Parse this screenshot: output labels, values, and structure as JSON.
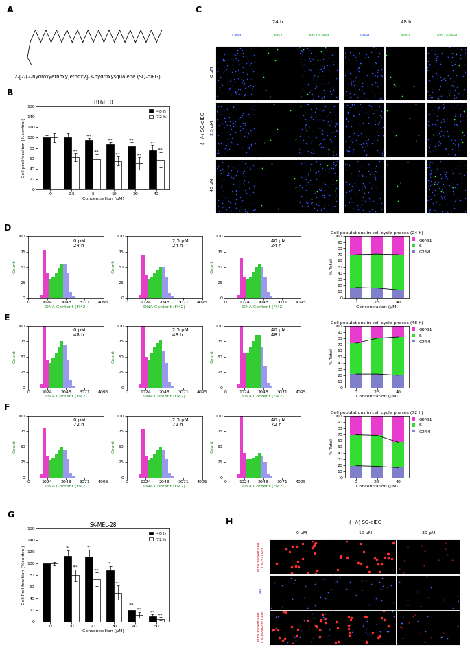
{
  "structure": {
    "panel": "A",
    "name": "2-[2-(2-hydroxyethoxy)ethoxy]-3-hydroxysqualene (SQ-dlEG)"
  },
  "micrographs": [
    {
      "panel": "C",
      "group_label": "(+/-) SQ-dlEG",
      "time_labels": [
        "24 h",
        "48 h"
      ],
      "channels": [
        "DAPI",
        "KI67",
        "KI67/DAPI"
      ],
      "rows": [
        "0 µM",
        "2.5 µM",
        "40 µM"
      ]
    },
    {
      "panel": "H",
      "group_label": "(+/-) SQ-dlEG",
      "columns": [
        "0 µM",
        "10 µM",
        "30 µM"
      ],
      "rows": [
        "MitoTracker Red\nCM-H2XRos",
        "DAPI",
        "MitoTracker Red\nCM-H2XRos/ DAPI"
      ]
    }
  ],
  "chart_data": [
    {
      "panel": "B",
      "type": "bar",
      "title": "B16F10",
      "xlabel": "Concentration (µM)",
      "ylabel": "Cell proliferation (%control)",
      "categories": [
        "0",
        "2.5",
        "5",
        "10",
        "20",
        "40"
      ],
      "ylim": [
        0,
        160
      ],
      "yticks": [
        0,
        20,
        40,
        60,
        80,
        100,
        120,
        140,
        160
      ],
      "legend": "upper right",
      "series": [
        {
          "name": "48 h",
          "color": "#000000",
          "values": [
            100,
            100,
            95,
            88,
            83,
            75
          ],
          "errors": [
            5,
            8,
            4,
            3,
            8,
            10
          ],
          "annotations": [
            null,
            null,
            "***",
            "***",
            "***",
            "***"
          ]
        },
        {
          "name": "72 h",
          "color": "#ffffff",
          "values": [
            100,
            62,
            58,
            55,
            50,
            57
          ],
          "errors": [
            8,
            8,
            10,
            8,
            12,
            15
          ],
          "annotations": [
            null,
            "***",
            "***",
            "***",
            "***",
            "***"
          ]
        }
      ]
    },
    {
      "panel": "D",
      "type": "histogram",
      "annotation": "0 µM\n24 h",
      "xlabel": "DNA Content (FM2)",
      "ylabel": "Count",
      "bins": [
        640,
        800,
        960,
        1120,
        1280,
        1440,
        1600,
        1760,
        1920,
        2080,
        2240,
        2400,
        2560
      ],
      "values": [
        5,
        78,
        40,
        30,
        35,
        40,
        48,
        55,
        55,
        40,
        10,
        2
      ],
      "colors": [
        "#e640c8",
        "#e640c8",
        "#e640c8",
        "#33cc33",
        "#33cc33",
        "#33cc33",
        "#33cc33",
        "#33cc33",
        "#9999ee",
        "#9999ee",
        "#9999ee",
        "#9999ee"
      ],
      "xlim": [
        0,
        4095
      ],
      "xticks": [
        0,
        1024,
        2048,
        3071,
        4095
      ],
      "ylim": [
        0,
        100
      ],
      "yticks": [
        0,
        25,
        50,
        75,
        100
      ]
    },
    {
      "type": "histogram",
      "annotation": "2.5 µM\n24 h",
      "xlabel": "DNA Content (FM2)",
      "ylabel": "Count",
      "bins": [
        640,
        800,
        960,
        1120,
        1280,
        1440,
        1600,
        1760,
        1920,
        2080,
        2240,
        2400,
        2560
      ],
      "values": [
        5,
        70,
        38,
        30,
        35,
        40,
        45,
        50,
        50,
        35,
        8,
        2
      ],
      "colors": [
        "#e640c8",
        "#e640c8",
        "#e640c8",
        "#33cc33",
        "#33cc33",
        "#33cc33",
        "#33cc33",
        "#33cc33",
        "#9999ee",
        "#9999ee",
        "#9999ee",
        "#9999ee"
      ],
      "xlim": [
        0,
        4095
      ],
      "xticks": [
        0,
        1024,
        2048,
        3071,
        4095
      ],
      "ylim": [
        0,
        100
      ],
      "yticks": [
        0,
        25,
        50,
        75,
        100
      ]
    },
    {
      "type": "histogram",
      "annotation": "40 µM\n24 h",
      "xlabel": "DNA Content (FM2)",
      "ylabel": "Count",
      "bins": [
        640,
        800,
        960,
        1120,
        1280,
        1440,
        1600,
        1760,
        1920,
        2080,
        2240,
        2400,
        2560
      ],
      "values": [
        5,
        65,
        35,
        30,
        35,
        42,
        50,
        55,
        50,
        35,
        10,
        2
      ],
      "colors": [
        "#e640c8",
        "#e640c8",
        "#e640c8",
        "#33cc33",
        "#33cc33",
        "#33cc33",
        "#33cc33",
        "#33cc33",
        "#9999ee",
        "#9999ee",
        "#9999ee",
        "#9999ee"
      ],
      "xlim": [
        0,
        4095
      ],
      "xticks": [
        0,
        1024,
        2048,
        3071,
        4095
      ],
      "ylim": [
        0,
        100
      ],
      "yticks": [
        0,
        25,
        50,
        75,
        100
      ]
    },
    {
      "type": "bar",
      "stacked": true,
      "title": "Cell populations in cell cycle phases (24 h)",
      "xlabel": "Concentration (µM)",
      "ylabel": "% Total",
      "categories": [
        "0",
        "2.5",
        "40"
      ],
      "ylim": [
        0,
        100
      ],
      "yticks": [
        0,
        10,
        20,
        30,
        40,
        50,
        60,
        70,
        80,
        90,
        100
      ],
      "legend": "upper left",
      "series": [
        {
          "name": "G2/M",
          "color": "#7f7fcc",
          "values": [
            17,
            16,
            13
          ]
        },
        {
          "name": "S",
          "color": "#33dd33",
          "values": [
            53,
            55,
            57
          ]
        },
        {
          "name": "G0/G1",
          "color": "#e83ccf",
          "values": [
            30,
            29,
            30
          ]
        }
      ]
    },
    {
      "panel": "E",
      "type": "histogram",
      "annotation": "0 µM\n48 h",
      "xlabel": "DNA Content (FM2)",
      "ylabel": "Count",
      "bins": [
        640,
        800,
        960,
        1120,
        1280,
        1440,
        1600,
        1760,
        1920,
        2080,
        2240,
        2400,
        2560
      ],
      "values": [
        5,
        100,
        45,
        40,
        48,
        55,
        65,
        75,
        70,
        45,
        12,
        2
      ],
      "colors": [
        "#e640c8",
        "#e640c8",
        "#e640c8",
        "#33cc33",
        "#33cc33",
        "#33cc33",
        "#33cc33",
        "#33cc33",
        "#9999ee",
        "#9999ee",
        "#9999ee",
        "#9999ee"
      ],
      "xlim": [
        0,
        4095
      ],
      "xticks": [
        0,
        1024,
        2048,
        3071,
        4095
      ],
      "ylim": [
        0,
        100
      ],
      "yticks": [
        0,
        25,
        50,
        75,
        100
      ]
    },
    {
      "type": "histogram",
      "annotation": "2.5 µM\n48 h",
      "xlabel": "DNA Content (FM2)",
      "ylabel": "Count",
      "bins": [
        640,
        800,
        960,
        1120,
        1280,
        1440,
        1600,
        1760,
        1920,
        2080,
        2240,
        2400,
        2560
      ],
      "values": [
        5,
        100,
        50,
        45,
        55,
        65,
        72,
        78,
        60,
        40,
        10,
        2
      ],
      "colors": [
        "#e640c8",
        "#e640c8",
        "#e640c8",
        "#33cc33",
        "#33cc33",
        "#33cc33",
        "#33cc33",
        "#33cc33",
        "#9999ee",
        "#9999ee",
        "#9999ee",
        "#9999ee"
      ],
      "xlim": [
        0,
        4095
      ],
      "xticks": [
        0,
        1024,
        2048,
        3071,
        4095
      ],
      "ylim": [
        0,
        100
      ],
      "yticks": [
        0,
        25,
        50,
        75,
        100
      ]
    },
    {
      "type": "histogram",
      "annotation": "40 µM\n48 h",
      "xlabel": "DNA Content (FM2)",
      "ylabel": "Count",
      "bins": [
        640,
        800,
        960,
        1120,
        1280,
        1440,
        1600,
        1760,
        1920,
        2080,
        2240,
        2400,
        2560
      ],
      "values": [
        5,
        100,
        55,
        55,
        65,
        75,
        85,
        85,
        65,
        35,
        8,
        2
      ],
      "colors": [
        "#e640c8",
        "#e640c8",
        "#e640c8",
        "#33cc33",
        "#33cc33",
        "#33cc33",
        "#33cc33",
        "#33cc33",
        "#9999ee",
        "#9999ee",
        "#9999ee",
        "#9999ee"
      ],
      "xlim": [
        0,
        4095
      ],
      "xticks": [
        0,
        1024,
        2048,
        3071,
        4095
      ],
      "ylim": [
        0,
        100
      ],
      "yticks": [
        0,
        25,
        50,
        75,
        100
      ]
    },
    {
      "type": "bar",
      "stacked": true,
      "title": "Cell populations in cell cycle phases (48 h)",
      "xlabel": "Concentration (µM)",
      "ylabel": "% Total",
      "categories": [
        "0",
        "2.5",
        "40"
      ],
      "ylim": [
        0,
        100
      ],
      "yticks": [
        0,
        10,
        20,
        30,
        40,
        50,
        60,
        70,
        80,
        90,
        100
      ],
      "legend": "upper left",
      "series": [
        {
          "name": "G2/M",
          "color": "#7f7fcc",
          "values": [
            22,
            22,
            20
          ]
        },
        {
          "name": "S",
          "color": "#33dd33",
          "values": [
            50,
            58,
            62
          ]
        },
        {
          "name": "G0/G1",
          "color": "#e83ccf",
          "values": [
            28,
            20,
            18
          ]
        }
      ]
    },
    {
      "panel": "F",
      "type": "histogram",
      "annotation": "0 µM\n72 h",
      "xlabel": "DNA Content (FM2)",
      "ylabel": "Count",
      "bins": [
        640,
        800,
        960,
        1120,
        1280,
        1440,
        1600,
        1760,
        1920,
        2080,
        2240,
        2400,
        2560
      ],
      "values": [
        5,
        80,
        35,
        28,
        32,
        38,
        45,
        50,
        45,
        30,
        8,
        2
      ],
      "colors": [
        "#e640c8",
        "#e640c8",
        "#e640c8",
        "#33cc33",
        "#33cc33",
        "#33cc33",
        "#33cc33",
        "#33cc33",
        "#9999ee",
        "#9999ee",
        "#9999ee",
        "#9999ee"
      ],
      "xlim": [
        0,
        4095
      ],
      "xticks": [
        0,
        1024,
        2048,
        3071,
        4095
      ],
      "ylim": [
        0,
        100
      ],
      "yticks": [
        0,
        25,
        50,
        75,
        100
      ]
    },
    {
      "type": "histogram",
      "annotation": "2.5 µM\n72 h",
      "xlabel": "DNA Content (FM2)",
      "ylabel": "Count",
      "bins": [
        640,
        800,
        960,
        1120,
        1280,
        1440,
        1600,
        1760,
        1920,
        2080,
        2240,
        2400,
        2560
      ],
      "values": [
        5,
        78,
        35,
        28,
        32,
        38,
        45,
        48,
        45,
        30,
        8,
        2
      ],
      "colors": [
        "#e640c8",
        "#e640c8",
        "#e640c8",
        "#33cc33",
        "#33cc33",
        "#33cc33",
        "#33cc33",
        "#33cc33",
        "#9999ee",
        "#9999ee",
        "#9999ee",
        "#9999ee"
      ],
      "xlim": [
        0,
        4095
      ],
      "xticks": [
        0,
        1024,
        2048,
        3071,
        4095
      ],
      "ylim": [
        0,
        100
      ],
      "yticks": [
        0,
        25,
        50,
        75,
        100
      ]
    },
    {
      "type": "histogram",
      "annotation": "40 µM\n72 h",
      "xlabel": "DNA Content (FM2)",
      "ylabel": "Count",
      "bins": [
        640,
        800,
        960,
        1120,
        1280,
        1440,
        1600,
        1760,
        1920,
        2080,
        2240,
        2400,
        2560
      ],
      "values": [
        5,
        100,
        40,
        30,
        30,
        32,
        35,
        40,
        35,
        25,
        6,
        2
      ],
      "colors": [
        "#e640c8",
        "#e640c8",
        "#e640c8",
        "#33cc33",
        "#33cc33",
        "#33cc33",
        "#33cc33",
        "#33cc33",
        "#9999ee",
        "#9999ee",
        "#9999ee",
        "#9999ee"
      ],
      "xlim": [
        0,
        4095
      ],
      "xticks": [
        0,
        1024,
        2048,
        3071,
        4095
      ],
      "ylim": [
        0,
        100
      ],
      "yticks": [
        0,
        25,
        50,
        75,
        100
      ]
    },
    {
      "type": "bar",
      "stacked": true,
      "title": "Cell populations in cell cycle phases (72 h)",
      "xlabel": "Concentration (µM)",
      "ylabel": "% Total",
      "categories": [
        "0",
        "2.5",
        "40"
      ],
      "ylim": [
        0,
        100
      ],
      "yticks": [
        0,
        10,
        20,
        30,
        40,
        50,
        60,
        70,
        80,
        90,
        100
      ],
      "legend": "upper left",
      "series": [
        {
          "name": "G2/M",
          "color": "#7f7fcc",
          "values": [
            19,
            18,
            16
          ]
        },
        {
          "name": "S",
          "color": "#33dd33",
          "values": [
            50,
            50,
            41
          ]
        },
        {
          "name": "G0/G1",
          "color": "#e83ccf",
          "values": [
            31,
            32,
            43
          ]
        }
      ]
    },
    {
      "panel": "G",
      "type": "bar",
      "title": "SK-MEL-28",
      "xlabel": "Concentration (µM)",
      "ylabel": "Cell Proliferation (%control)",
      "categories": [
        "0",
        "10",
        "20",
        "30",
        "40",
        "50"
      ],
      "ylim": [
        0,
        160
      ],
      "yticks": [
        0,
        20,
        40,
        60,
        80,
        100,
        120,
        140,
        160
      ],
      "legend": "upper right",
      "series": [
        {
          "name": "48 h",
          "color": "#000000",
          "values": [
            100,
            113,
            112,
            88,
            20,
            10
          ],
          "errors": [
            5,
            10,
            12,
            8,
            6,
            3
          ],
          "annotations": [
            null,
            "**",
            "**",
            "**",
            "***",
            "***"
          ]
        },
        {
          "name": "72 h",
          "color": "#ffffff",
          "values": [
            100,
            80,
            73,
            50,
            12,
            5
          ],
          "errors": [
            3,
            10,
            12,
            12,
            5,
            3
          ],
          "annotations": [
            null,
            "***",
            "***",
            "***",
            "***",
            "***"
          ]
        }
      ]
    }
  ]
}
